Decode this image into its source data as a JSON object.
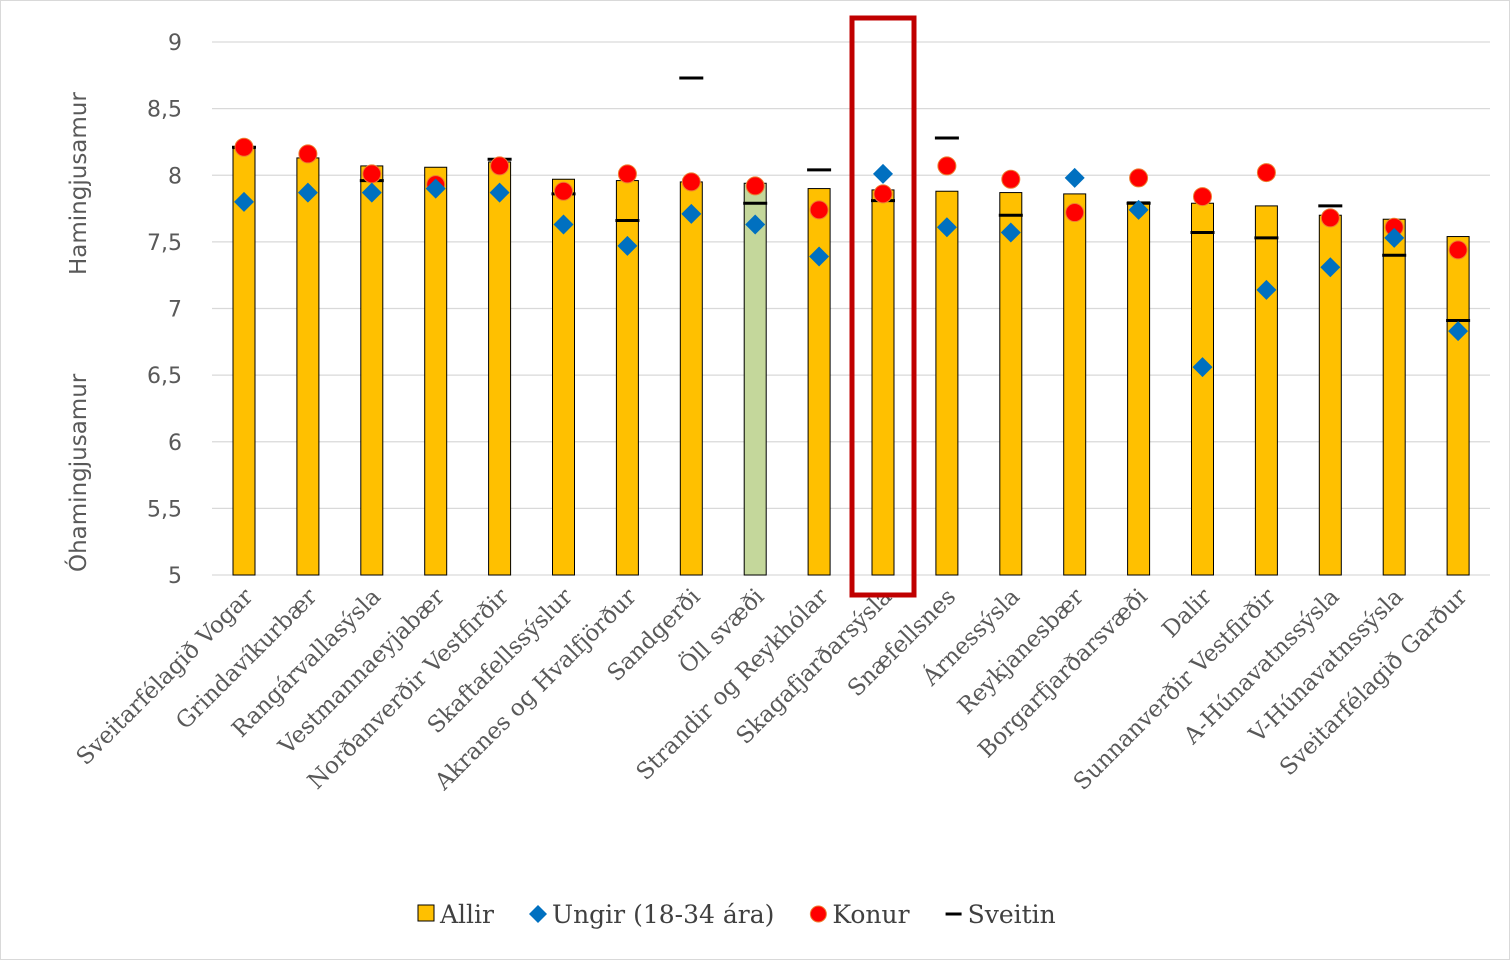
{
  "chart_data": {
    "type": "bar",
    "title": "",
    "ylabel_upper": "Hamingjusamur",
    "ylabel_lower": "Óhamingjusamur",
    "ylim": [
      5,
      9
    ],
    "yticks": [
      "9",
      "8,5",
      "8",
      "7,5",
      "7",
      "6,5",
      "6",
      "5,5",
      "5"
    ],
    "ytick_values": [
      9,
      8.5,
      8,
      7.5,
      7,
      6.5,
      6,
      5.5,
      5
    ],
    "grid": true,
    "legend_position": "bottom",
    "highlight_category": "Skagafjarðarsýsla",
    "categories": [
      "Sveitarfélagið Vogar",
      "Grindavíkurbær",
      "Rangárvallasýsla",
      "Vestmannaeyjabær",
      "Norðanverðir Vestfirðir",
      "Skaftafellssýslur",
      "Akranes og Hvalfjörður",
      "Sandgerði",
      "Öll svæði",
      "Strandir og Reykhólar",
      "Skagafjarðarsýsla",
      "Snæfellsnes",
      "Árnessýsla",
      "Reykjanesbær",
      "Borgarfjarðarsvæði",
      "Dalir",
      "Sunnanverðir Vestfirðir",
      "A-Húnavatnssýsla",
      "V-Húnavatnssýsla",
      "Sveitarfélagið Garður"
    ],
    "series": [
      {
        "name": "Allir",
        "kind": "bar",
        "color": "#FFC000",
        "values": [
          8.2,
          8.13,
          8.07,
          8.06,
          8.1,
          7.97,
          7.96,
          7.95,
          7.94,
          7.9,
          7.89,
          7.88,
          7.87,
          7.86,
          7.8,
          7.79,
          7.77,
          7.7,
          7.67,
          7.54
        ]
      },
      {
        "name": "Ungir (18-34 ára)",
        "kind": "diamond",
        "color": "#0070C0",
        "values": [
          7.8,
          7.87,
          7.87,
          7.9,
          7.87,
          7.63,
          7.47,
          7.71,
          7.63,
          7.39,
          8.01,
          7.61,
          7.57,
          7.98,
          7.74,
          6.56,
          7.14,
          7.31,
          7.53,
          6.83
        ]
      },
      {
        "name": "Konur",
        "kind": "circle",
        "color": "#FF0000",
        "values": [
          8.21,
          8.16,
          8.01,
          7.93,
          8.07,
          7.88,
          8.01,
          7.95,
          7.92,
          7.74,
          7.86,
          8.07,
          7.97,
          7.72,
          7.98,
          7.84,
          8.02,
          7.68,
          7.61,
          7.44
        ]
      },
      {
        "name": "Sveitin",
        "kind": "dash",
        "color": "#000000",
        "values": [
          8.21,
          null,
          7.96,
          null,
          8.12,
          7.86,
          7.66,
          8.73,
          7.79,
          8.04,
          7.81,
          8.28,
          7.7,
          null,
          7.79,
          7.57,
          7.53,
          7.77,
          7.4,
          6.91
        ]
      }
    ],
    "colors": {
      "bar": "#FFC000",
      "bar_all_areas": "#C4D79B",
      "highlight_box": "#C00000",
      "grid": "#D9D9D9"
    }
  }
}
